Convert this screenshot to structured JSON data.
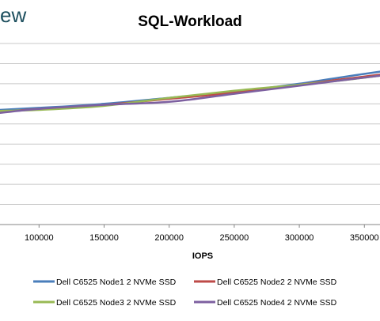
{
  "watermark": "ew",
  "chart_data": {
    "type": "line",
    "title": "SQL-Workload",
    "xlabel": "IOPS",
    "ylabel": "",
    "x_tick_labels": [
      "100000",
      "150000",
      "200000",
      "250000",
      "300000",
      "350000"
    ],
    "x_ticks": [
      100000,
      150000,
      200000,
      250000,
      300000,
      350000
    ],
    "xlim": [
      70000,
      362000
    ],
    "ylim": [
      0,
      9
    ],
    "grid": true,
    "legend_position": "bottom",
    "series": [
      {
        "name": "Dell C6525 Node1 2 NVMe SSD",
        "color": "#4a7ebb",
        "points": [
          [
            70000,
            5.7
          ],
          [
            100000,
            5.8
          ],
          [
            150000,
            6.0
          ],
          [
            200000,
            6.3
          ],
          [
            250000,
            6.6
          ],
          [
            300000,
            7.0
          ],
          [
            330000,
            7.3
          ],
          [
            362000,
            7.6
          ]
        ]
      },
      {
        "name": "Dell C6525 Node2 2 NVMe SSD",
        "color": "#be4b48",
        "points": [
          [
            70000,
            5.6
          ],
          [
            100000,
            5.75
          ],
          [
            150000,
            5.95
          ],
          [
            200000,
            6.25
          ],
          [
            250000,
            6.55
          ],
          [
            300000,
            6.95
          ],
          [
            330000,
            7.2
          ],
          [
            362000,
            7.45
          ]
        ]
      },
      {
        "name": "Dell C6525 Node3 2 NVMe SSD",
        "color": "#98b954",
        "points": [
          [
            70000,
            5.65
          ],
          [
            100000,
            5.7
          ],
          [
            150000,
            5.9
          ],
          [
            200000,
            6.3
          ],
          [
            250000,
            6.65
          ],
          [
            300000,
            6.95
          ],
          [
            330000,
            7.15
          ],
          [
            362000,
            7.4
          ]
        ]
      },
      {
        "name": "Dell C6525 Node4 2 NVMe SSD",
        "color": "#7d60a0",
        "points": [
          [
            70000,
            5.55
          ],
          [
            100000,
            5.75
          ],
          [
            150000,
            5.95
          ],
          [
            200000,
            6.1
          ],
          [
            250000,
            6.5
          ],
          [
            300000,
            6.9
          ],
          [
            330000,
            7.15
          ],
          [
            362000,
            7.4
          ]
        ]
      }
    ]
  }
}
